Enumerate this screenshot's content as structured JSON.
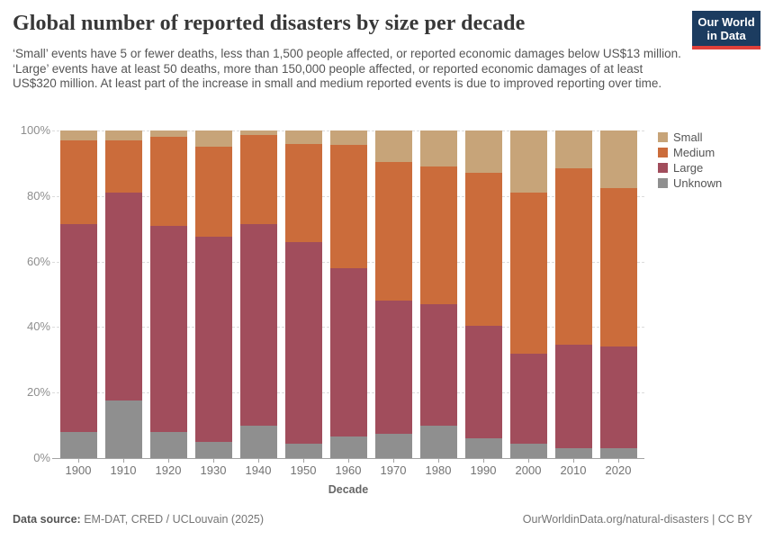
{
  "header": {
    "title": "Global number of reported disasters by size per decade",
    "subtitle": "‘Small’ events have 5 or fewer deaths, less than 1,500 people affected, or reported economic damages below US$13 million. ‘Large’ events have at least 50 deaths, more than 150,000 people affected, or reported economic damages of at least US$320 million. At least part of the increase in small and medium reported events is due to improved reporting over time.",
    "logo": {
      "line1": "Our World",
      "line2": "in Data",
      "bg_color": "#1C3C60",
      "stripe_color": "#E0403A"
    }
  },
  "chart_data": {
    "type": "bar",
    "stacked": true,
    "unit": "%",
    "title": "Global number of reported disasters by size per decade",
    "xlabel": "Decade",
    "ylabel": "",
    "ylim": [
      0,
      100
    ],
    "grid": "dashed-horizontal",
    "legend_position": "top-right",
    "yticks": [
      {
        "value": 0,
        "label": "0%"
      },
      {
        "value": 20,
        "label": "20%"
      },
      {
        "value": 40,
        "label": "40%"
      },
      {
        "value": 60,
        "label": "60%"
      },
      {
        "value": 80,
        "label": "80%"
      },
      {
        "value": 100,
        "label": "100%"
      }
    ],
    "categories": [
      "1900",
      "1910",
      "1920",
      "1930",
      "1940",
      "1950",
      "1960",
      "1970",
      "1980",
      "1990",
      "2000",
      "2010",
      "2020"
    ],
    "series": [
      {
        "name": "Unknown",
        "color": "#8F8F8F",
        "values": [
          8,
          17.5,
          8,
          5,
          10,
          4.5,
          6.5,
          7.5,
          10,
          6,
          4.5,
          3,
          3
        ]
      },
      {
        "name": "Large",
        "color": "#A14D5C",
        "values": [
          63.5,
          63.5,
          63,
          62.5,
          61.5,
          61.5,
          51.5,
          40.5,
          37,
          34.5,
          27.5,
          31.5,
          31
        ]
      },
      {
        "name": "Medium",
        "color": "#CB6C3B",
        "values": [
          25.5,
          16,
          27,
          27.5,
          27,
          30,
          37.5,
          42.5,
          42,
          46.5,
          49,
          54,
          48.5
        ]
      },
      {
        "name": "Small",
        "color": "#C7A479",
        "values": [
          3,
          3,
          2,
          5,
          1.5,
          4,
          4.5,
          9.5,
          11,
          13,
          19,
          11.5,
          17.5
        ]
      }
    ],
    "legend_order": [
      "Small",
      "Medium",
      "Large",
      "Unknown"
    ]
  },
  "footer": {
    "source_label": "Data source:",
    "source_value": " EM-DAT, CRED / UCLouvain (2025)",
    "credit": "OurWorldinData.org/natural-disasters | CC BY"
  }
}
